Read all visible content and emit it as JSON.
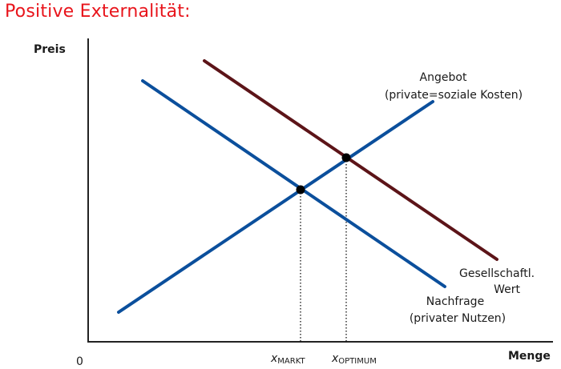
{
  "title": "Positive Externalität:",
  "axes": {
    "y_label": "Preis",
    "x_label": "Menge",
    "origin": "0"
  },
  "curves": {
    "supply": {
      "line1": "Angebot",
      "line2": "(private=soziale Kosten)",
      "color": "#0b4f9c"
    },
    "demand": {
      "line1": "Nachfrage",
      "line2": "(privater Nutzen)",
      "color": "#0b4f9c"
    },
    "social": {
      "line1": "Gesellschaftl.",
      "line2": "Wert",
      "color": "#5c1418"
    }
  },
  "markers": {
    "market": {
      "letter": "x",
      "sub": "MARKT"
    },
    "optimum": {
      "letter": "x",
      "sub": "OPTIMUM"
    }
  }
}
